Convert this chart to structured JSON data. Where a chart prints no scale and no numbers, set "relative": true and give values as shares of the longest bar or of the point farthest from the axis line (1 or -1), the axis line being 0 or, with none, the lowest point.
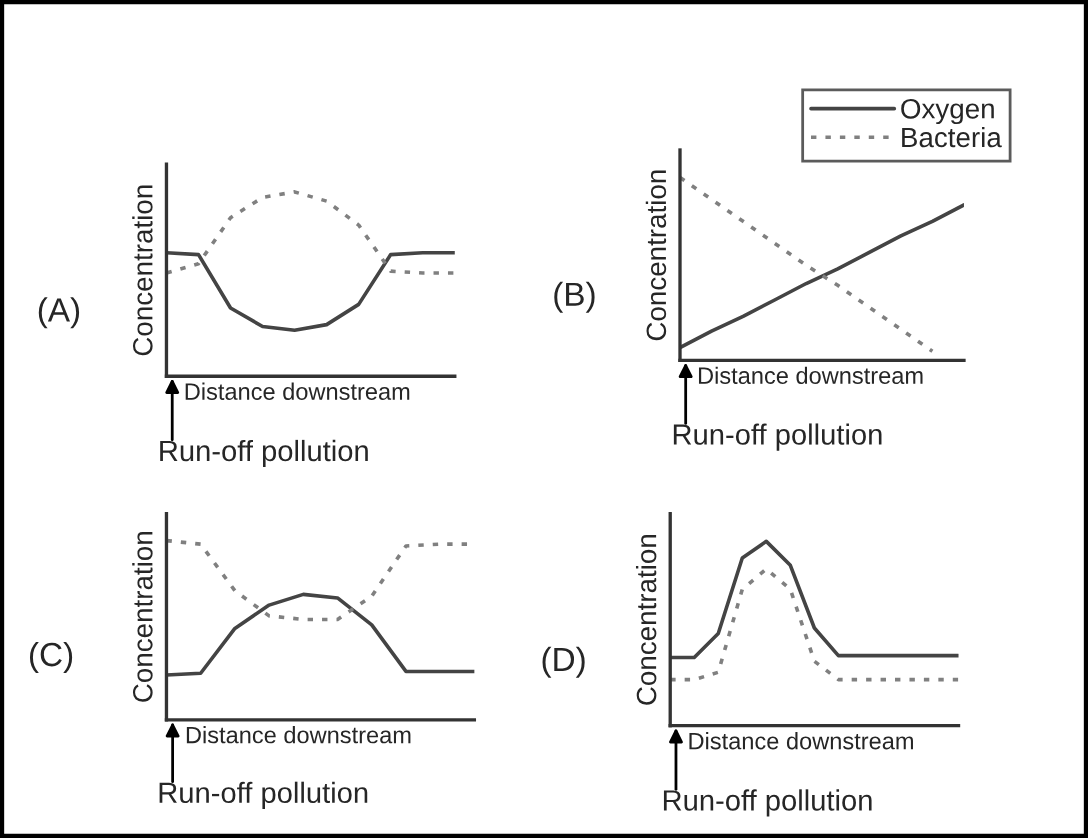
{
  "chart_data": [
    {
      "type": "line",
      "title": "(A)",
      "xlabel": "Distance downstream",
      "ylabel": "Concentration",
      "annotations": [
        "Run-off pollution"
      ],
      "relative": true,
      "legend": false,
      "categories": [
        null,
        null,
        null,
        null,
        null,
        null,
        null,
        null,
        null,
        null
      ],
      "series": [
        {
          "color": "#444444",
          "line_style": "solid",
          "values": [
            0.67,
            0.66,
            0.37,
            0.27,
            0.25,
            0.28,
            0.39,
            0.66,
            0.67,
            0.67
          ]
        },
        {
          "color": "#808080",
          "line_style": "dotted",
          "values": [
            0.56,
            0.61,
            0.86,
            0.97,
            1.0,
            0.95,
            0.82,
            0.57,
            0.56,
            0.56
          ]
        }
      ]
    },
    {
      "type": "line",
      "title": "(B)",
      "xlabel": "Distance downstream",
      "ylabel": "Concentration",
      "annotations": [
        "Run-off pollution"
      ],
      "relative": true,
      "legend": "top right",
      "categories": [
        null,
        null,
        null,
        null,
        null,
        null,
        null,
        null,
        null,
        null
      ],
      "series": [
        {
          "name": "Oxygen",
          "color": "#444444",
          "line_style": "solid",
          "values": [
            0.07,
            0.16,
            0.24,
            0.33,
            0.42,
            0.5,
            0.59,
            0.68,
            0.76,
            0.85
          ]
        },
        {
          "name": "Bacteria",
          "color": "#808080",
          "line_style": "dotted",
          "values": [
            1.0,
            0.88,
            0.76,
            0.64,
            0.52,
            0.41,
            0.29,
            0.17,
            0.05,
            null
          ]
        }
      ]
    },
    {
      "type": "line",
      "title": "(C)",
      "xlabel": "Distance downstream",
      "ylabel": "Concentration",
      "annotations": [
        "Run-off pollution"
      ],
      "relative": true,
      "legend": false,
      "categories": [
        null,
        null,
        null,
        null,
        null,
        null,
        null,
        null,
        null,
        null
      ],
      "series": [
        {
          "color": "#444444",
          "line_style": "solid",
          "values": [
            0.25,
            0.26,
            0.51,
            0.64,
            0.7,
            0.68,
            0.53,
            0.27,
            0.27,
            0.27
          ]
        },
        {
          "color": "#808080",
          "line_style": "dotted",
          "values": [
            1.0,
            0.98,
            0.72,
            0.58,
            0.56,
            0.56,
            0.69,
            0.97,
            0.98,
            0.98
          ]
        }
      ]
    },
    {
      "type": "line",
      "title": "(D)",
      "xlabel": "Distance downstream",
      "ylabel": "Concentration",
      "annotations": [
        "Run-off pollution"
      ],
      "relative": true,
      "legend": false,
      "categories": [
        null,
        null,
        null,
        null,
        null,
        null,
        null,
        null,
        null,
        null,
        null,
        null,
        null
      ],
      "series": [
        {
          "color": "#444444",
          "line_style": "solid",
          "values": [
            0.37,
            0.37,
            0.5,
            0.91,
            1.0,
            0.87,
            0.53,
            0.38,
            0.38,
            0.38,
            0.38,
            0.38,
            0.38
          ]
        },
        {
          "color": "#808080",
          "line_style": "dotted",
          "values": [
            0.25,
            0.25,
            0.29,
            0.74,
            0.85,
            0.74,
            0.35,
            0.25,
            0.25,
            0.25,
            0.25,
            0.25,
            0.25
          ]
        }
      ]
    }
  ]
}
